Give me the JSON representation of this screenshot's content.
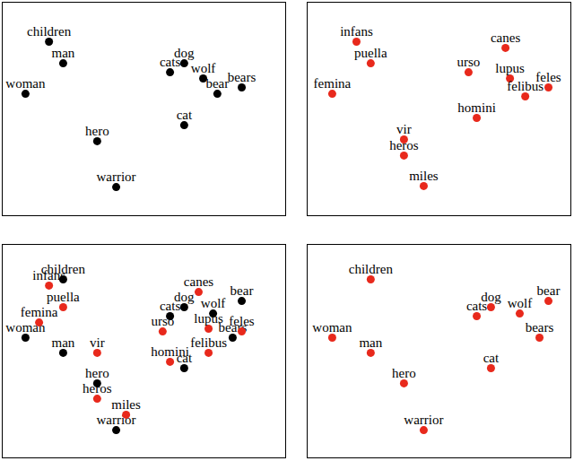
{
  "chart_data": [
    {
      "type": "scatter",
      "xlim": [
        0,
        100
      ],
      "ylim": [
        0,
        100
      ],
      "tick_labels": false,
      "grid": false,
      "series": [
        {
          "color": "#000000",
          "labels": [
            "children",
            "man",
            "woman",
            "hero",
            "warrior",
            "dog",
            "cats",
            "wolf",
            "bear",
            "bears",
            "cat"
          ],
          "x": [
            16.5,
            21.5,
            8.2,
            33.5,
            40.2,
            64.2,
            59.2,
            70.9,
            75.9,
            84.5,
            64.2
          ],
          "values": [
            81.5,
            71.4,
            57.1,
            34.9,
            13.4,
            71.4,
            67.2,
            64.3,
            57.1,
            60.1,
            42.4
          ]
        }
      ]
    },
    {
      "type": "scatter",
      "xlim": [
        0,
        100
      ],
      "ylim": [
        0,
        100
      ],
      "tick_labels": false,
      "grid": false,
      "series": [
        {
          "color": "#e8291c",
          "labels": [
            "infans",
            "puella",
            "femina",
            "canes",
            "urso",
            "lupus",
            "feles",
            "felibus",
            "homini",
            "vir",
            "heros",
            "miles"
          ],
          "x": [
            18.7,
            24.1,
            9.5,
            75.2,
            61.2,
            76.9,
            91.5,
            82.7,
            64.3,
            36.7,
            36.7,
            44.2
          ],
          "values": [
            81.5,
            71.4,
            57.1,
            78.6,
            67.2,
            64.3,
            60.1,
            55.9,
            45.8,
            35.7,
            28.2,
            13.9
          ]
        }
      ]
    },
    {
      "type": "scatter",
      "xlim": [
        0,
        100
      ],
      "ylim": [
        0,
        100
      ],
      "tick_labels": false,
      "grid": false,
      "series": [
        {
          "color": "#000000",
          "labels": [
            "children",
            "woman",
            "man",
            "cats",
            "dog",
            "wolf",
            "bear",
            "bears",
            "cat",
            "hero",
            "warrior"
          ],
          "x": [
            21.5,
            8.2,
            21.5,
            59.2,
            64.2,
            74.4,
            84.5,
            81.3,
            64.2,
            33.5,
            40.2
          ],
          "values": [
            83.6,
            56.3,
            49.2,
            66.4,
            70.6,
            67.6,
            73.5,
            56.3,
            42.0,
            34.9,
            13.0
          ]
        },
        {
          "color": "#e8291c",
          "labels": [
            "infans",
            "puella",
            "femina",
            "vir",
            "heros",
            "miles",
            "canes",
            "urso",
            "lupus",
            "feles",
            "felibus",
            "homini"
          ],
          "x": [
            16.5,
            21.5,
            13.0,
            33.5,
            33.5,
            43.7,
            69.3,
            56.6,
            72.8,
            84.5,
            72.8,
            59.2
          ],
          "values": [
            80.7,
            70.6,
            63.4,
            49.2,
            27.7,
            20.2,
            77.7,
            59.2,
            60.5,
            59.2,
            49.2,
            45.0
          ]
        }
      ]
    },
    {
      "type": "scatter",
      "xlim": [
        0,
        100
      ],
      "ylim": [
        0,
        100
      ],
      "tick_labels": false,
      "grid": false,
      "series": [
        {
          "color": "#e8291c",
          "labels": [
            "children",
            "woman",
            "man",
            "hero",
            "warrior",
            "cats",
            "dog",
            "wolf",
            "bear",
            "bears",
            "cat"
          ],
          "x": [
            24.1,
            9.5,
            24.1,
            36.7,
            44.2,
            64.3,
            69.7,
            80.6,
            91.5,
            88.1,
            69.7
          ],
          "values": [
            83.6,
            56.3,
            49.2,
            34.9,
            13.0,
            66.4,
            70.6,
            67.6,
            73.5,
            56.3,
            42.0
          ]
        }
      ]
    }
  ]
}
